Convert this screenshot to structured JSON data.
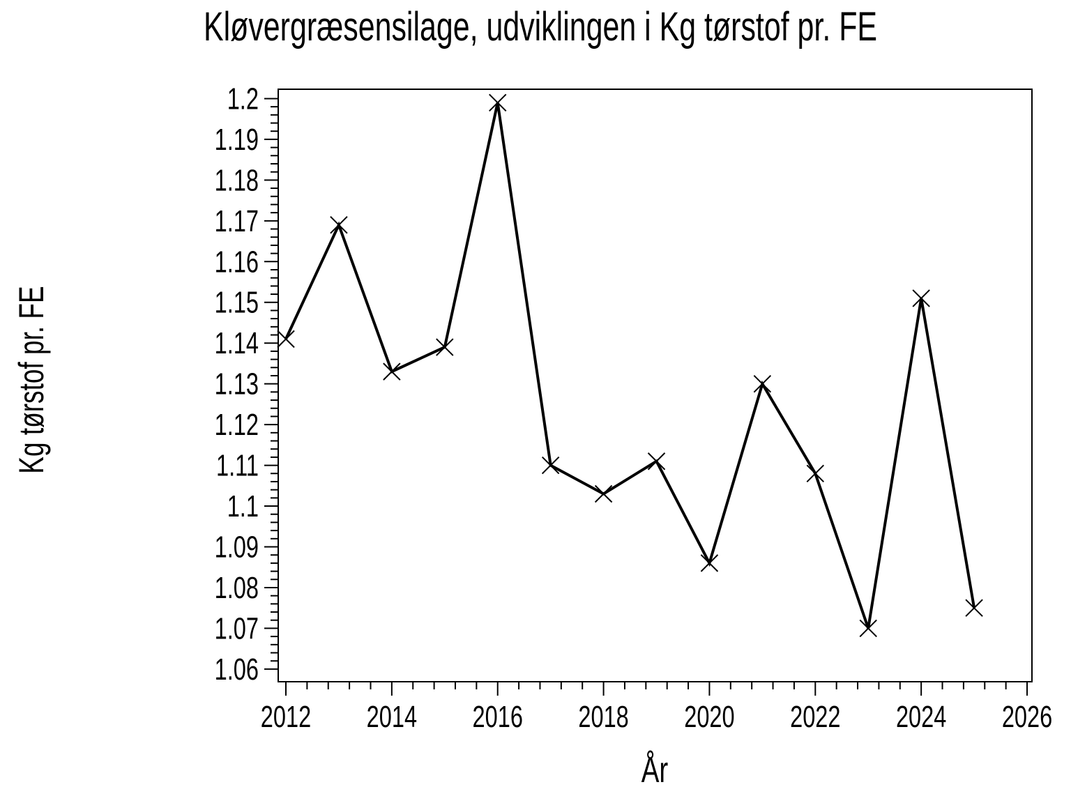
{
  "page": {
    "background": "#ffffff",
    "foreground": "#000000"
  },
  "chart_data": {
    "type": "line",
    "title": "Kløvergræsensilage, udviklingen i Kg tørstof pr. FE",
    "xlabel": "År",
    "ylabel": "Kg tørstof pr. FE",
    "x": [
      2012,
      2013,
      2014,
      2015,
      2016,
      2017,
      2018,
      2019,
      2020,
      2021,
      2022,
      2023,
      2024,
      2025
    ],
    "y": [
      1.141,
      1.169,
      1.133,
      1.139,
      1.199,
      1.11,
      1.103,
      1.111,
      1.086,
      1.13,
      1.108,
      1.07,
      1.151,
      1.075
    ],
    "series": [
      {
        "name": "Kg tørstof pr. FE",
        "marker": "x",
        "color": "#000000"
      }
    ],
    "marker": "x",
    "line_color": "#000000",
    "grid": false,
    "legend": "none",
    "xlim": [
      2011.855,
      2026.092
    ],
    "ylim": [
      1.0569,
      1.2023
    ],
    "x_ticks": {
      "major": [
        2012,
        2014,
        2016,
        2018,
        2020,
        2022,
        2024,
        2026
      ],
      "labels": [
        "2012",
        "2014",
        "2016",
        "2018",
        "2020",
        "2022",
        "2024",
        "2026"
      ],
      "minors_between": 4
    },
    "y_ticks": {
      "major": [
        1.06,
        1.07,
        1.08,
        1.09,
        1.1,
        1.11,
        1.12,
        1.13,
        1.14,
        1.15,
        1.16,
        1.17,
        1.18,
        1.19,
        1.2
      ],
      "labels": [
        "1.06",
        "1.07",
        "1.08",
        "1.09",
        "1.1",
        "1.11",
        "1.12",
        "1.13",
        "1.14",
        "1.15",
        "1.16",
        "1.17",
        "1.18",
        "1.19",
        "1.2"
      ],
      "minors_between": 4
    }
  }
}
